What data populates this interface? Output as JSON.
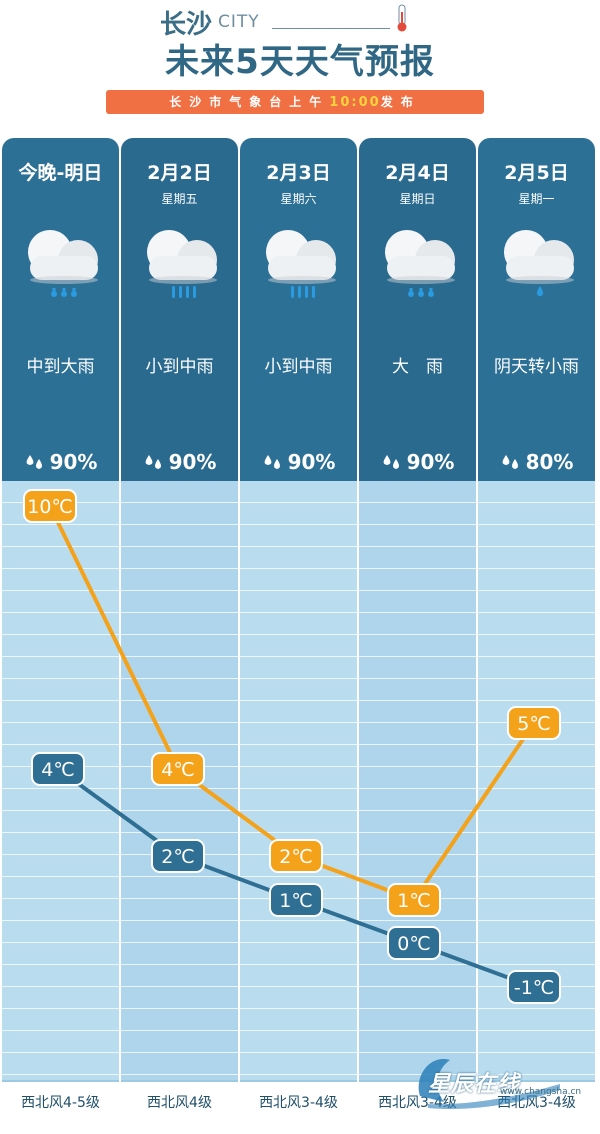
{
  "header": {
    "city_cn": "长沙",
    "city_en": "CITY",
    "title": "未来5天天气预报",
    "banner_prefix": "长沙市气象台上午",
    "banner_time": "10:00",
    "banner_suffix": "发布"
  },
  "days": [
    {
      "date": "今晚-明日",
      "weekday": "",
      "condition": "中到大雨",
      "precip": "90%",
      "icon": "cloud-heavy-rain-icon",
      "wind": "西北风4-5级"
    },
    {
      "date": "2月2日",
      "weekday": "星期五",
      "condition": "小到中雨",
      "precip": "90%",
      "icon": "cloud-moderate-rain-icon",
      "wind": "西北风4级"
    },
    {
      "date": "2月3日",
      "weekday": "星期六",
      "condition": "小到中雨",
      "precip": "90%",
      "icon": "cloud-moderate-rain-icon",
      "wind": "西北风3-4级"
    },
    {
      "date": "2月4日",
      "weekday": "星期日",
      "condition": "大　雨",
      "precip": "90%",
      "icon": "cloud-heavy-rain-icon",
      "wind": "西北风3-4级"
    },
    {
      "date": "2月5日",
      "weekday": "星期一",
      "condition": "阴天转小雨",
      "precip": "80%",
      "icon": "cloud-light-rain-icon",
      "wind": "西北风3-4级"
    }
  ],
  "chart_data": {
    "type": "line",
    "categories": [
      "今晚-明日",
      "2月2日",
      "2月3日",
      "2月4日",
      "2月5日"
    ],
    "series": [
      {
        "values": [
          10,
          4,
          2,
          1,
          5
        ],
        "labels": [
          "10℃",
          "4℃",
          "2℃",
          "1℃",
          "5℃"
        ],
        "color": "#f5a21b"
      },
      {
        "values": [
          4,
          2,
          1,
          0,
          -1
        ],
        "labels": [
          "4℃",
          "2℃",
          "1℃",
          "0℃",
          "-1℃"
        ],
        "color": "#2f6f93"
      }
    ],
    "unit": "℃"
  },
  "watermark": {
    "name": "星辰在线",
    "url": "www.changsha.cn"
  },
  "colors": {
    "header_blue": "#2c7096",
    "banner_orange": "#f07043",
    "high_line": "#f5a21b",
    "low_line": "#2f6f93"
  }
}
